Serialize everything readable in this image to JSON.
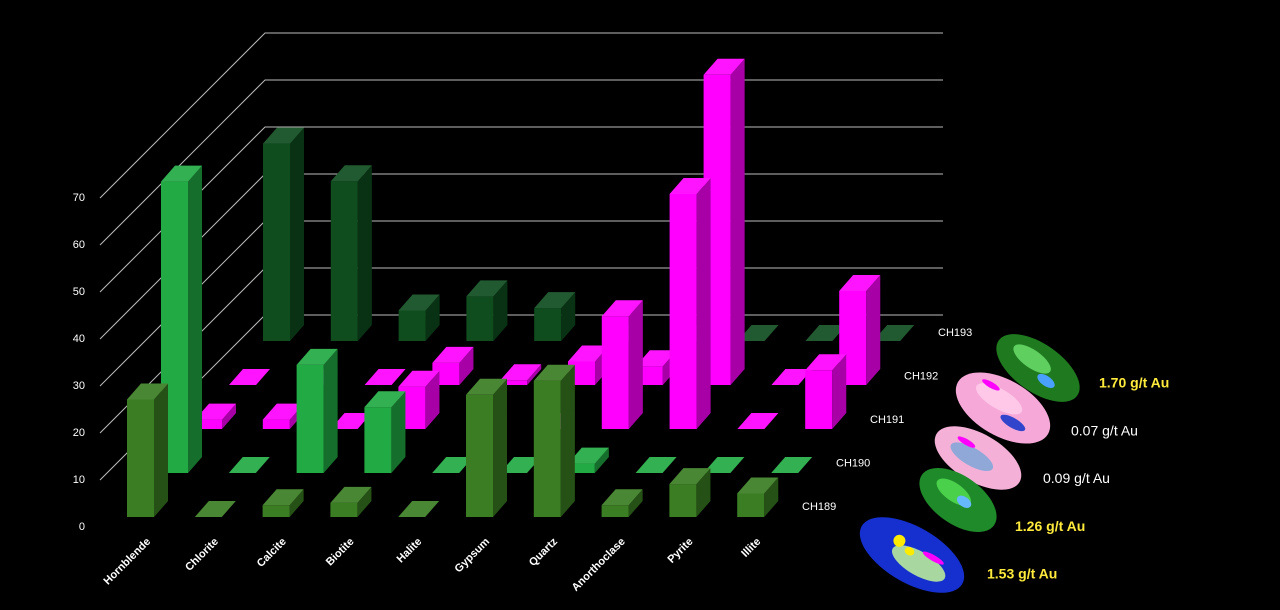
{
  "chart_data": {
    "type": "bar3d",
    "categories": [
      "Hornblende",
      "Chlorite",
      "Calcite",
      "Biotite",
      "Halite",
      "Gypsum",
      "Quartz",
      "Anorthoclase",
      "Pyrite",
      "Illite"
    ],
    "series": [
      {
        "name": "CH189",
        "color": "#3b7d23",
        "values": [
          25,
          0,
          2.5,
          3,
          0,
          26,
          29,
          2.5,
          7,
          5
        ],
        "grade": "1.53 g/t Au",
        "grade_color": "#ffeb3b"
      },
      {
        "name": "CH190",
        "color": "#22aa44",
        "values": [
          62,
          0,
          23,
          14,
          0,
          0,
          2,
          0,
          0,
          0
        ],
        "grade": "1.26 g/t Au",
        "grade_color": "#ffeb3b"
      },
      {
        "name": "CH191",
        "color": "#ff00ff",
        "values": [
          2,
          2,
          0,
          9,
          0,
          0,
          24,
          50,
          0,
          12.5
        ],
        "grade": "0.09 g/t Au",
        "grade_color": "#ffffff"
      },
      {
        "name": "CH192",
        "color": "#ff00ff",
        "values": [
          0,
          0,
          0,
          4.7,
          1,
          5,
          4,
          66,
          0,
          20
        ],
        "grade": "0.07 g/t Au",
        "grade_color": "#ffffff"
      },
      {
        "name": "CH193",
        "color": "#0f4d1f",
        "values": [
          42,
          34,
          6.5,
          9.5,
          7,
          0,
          0,
          0,
          0,
          0
        ],
        "grade": "1.70 g/t Au",
        "grade_color": "#ffeb3b"
      }
    ],
    "ylim": [
      0,
      70
    ],
    "yticks": [
      0,
      10,
      20,
      30,
      40,
      50,
      60,
      70
    ],
    "grid": true
  }
}
